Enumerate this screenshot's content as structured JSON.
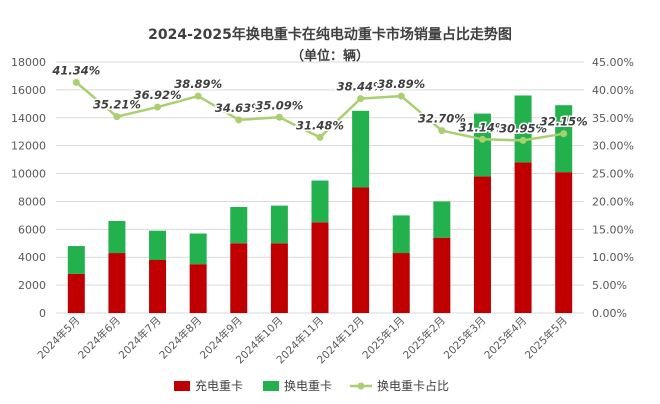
{
  "chart_data": {
    "type": "bar",
    "stacked": true,
    "title": "2024-2025年换电重卡在纯电动重卡市场销量占比走势图",
    "subtitle": "（单位：辆）",
    "categories": [
      "2024年5月",
      "2024年6月",
      "2024年7月",
      "2024年8月",
      "2024年9月",
      "2024年10月",
      "2024年11月",
      "2024年12月",
      "2025年1月",
      "2025年2月",
      "2025年3月",
      "2025年4月",
      "2025年5月"
    ],
    "series": [
      {
        "name": "充电重卡",
        "type": "bar",
        "axis": "left",
        "color": "#C00000",
        "values": [
          2800,
          4300,
          3800,
          3500,
          5000,
          5000,
          6500,
          9000,
          4300,
          5400,
          9800,
          10800,
          10100
        ]
      },
      {
        "name": "换电重卡",
        "type": "bar",
        "axis": "left",
        "color": "#22B14C",
        "values": [
          2000,
          2300,
          2100,
          2200,
          2600,
          2700,
          3000,
          5500,
          2700,
          2600,
          4500,
          4800,
          4800
        ]
      },
      {
        "name": "换电重卡占比",
        "type": "line",
        "axis": "right",
        "color": "#A9CF6E",
        "values": [
          41.34,
          35.21,
          36.92,
          38.89,
          34.63,
          35.09,
          31.48,
          38.44,
          38.89,
          32.7,
          31.14,
          30.95,
          32.15
        ],
        "labels": [
          "41.34%",
          "35.21%",
          "36.92%",
          "38.89%",
          "34.63%",
          "35.09%",
          "31.48%",
          "38.44%",
          "38.89%",
          "32.70%",
          "31.14%",
          "30.95%",
          "32.15%"
        ]
      }
    ],
    "y_left": {
      "min": 0,
      "max": 18000,
      "step": 2000,
      "ticks": [
        "0",
        "2000",
        "4000",
        "6000",
        "8000",
        "10000",
        "12000",
        "14000",
        "16000",
        "18000"
      ]
    },
    "y_right": {
      "min": 0,
      "max": 45,
      "step": 5,
      "ticks": [
        "0.00%",
        "5.00%",
        "10.00%",
        "15.00%",
        "20.00%",
        "25.00%",
        "30.00%",
        "35.00%",
        "40.00%",
        "45.00%"
      ]
    },
    "grid": true,
    "legend": "bottom"
  }
}
